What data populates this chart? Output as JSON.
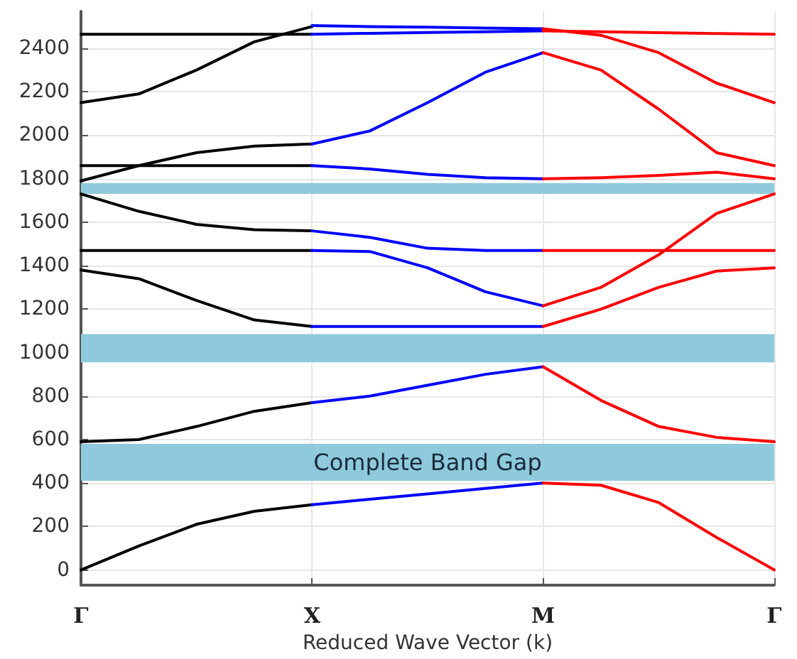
{
  "chart_data": {
    "type": "line",
    "xlabel": "Reduced Wave Vector (k)",
    "categories": [
      "Γ",
      null,
      null,
      null,
      "X",
      null,
      null,
      null,
      "M",
      null,
      null,
      null,
      "Γ"
    ],
    "ylim": [
      -70,
      2570
    ],
    "yticks": [
      0,
      200,
      400,
      600,
      800,
      1000,
      1200,
      1400,
      1600,
      1800,
      2000,
      2200,
      2400
    ],
    "grid": true,
    "marker": "none",
    "line_style": "solid",
    "bands": [
      {
        "axis": "y",
        "from": 410,
        "to": 580,
        "label": "Complete Band Gap",
        "color": "#8ecadb"
      },
      {
        "axis": "y",
        "from": 955,
        "to": 1085,
        "label": null,
        "color": "#8ecadb"
      },
      {
        "axis": "y",
        "from": 1730,
        "to": 1780,
        "label": null,
        "color": "#8ecadb"
      }
    ],
    "series": [
      {
        "color": "#000000",
        "values": [
          0,
          110,
          210,
          270,
          300,
          null,
          null,
          null,
          null,
          null,
          null,
          null,
          null
        ]
      },
      {
        "color": "#000000",
        "values": [
          590,
          600,
          660,
          730,
          770,
          null,
          null,
          null,
          null,
          null,
          null,
          null,
          null
        ]
      },
      {
        "color": "#000000",
        "values": [
          1380,
          1340,
          1240,
          1150,
          1120,
          null,
          null,
          null,
          null,
          null,
          null,
          null,
          null
        ]
      },
      {
        "color": "#000000",
        "values": [
          1470,
          1470,
          1470,
          1470,
          1470,
          null,
          null,
          null,
          null,
          null,
          null,
          null,
          null
        ]
      },
      {
        "color": "#000000",
        "values": [
          1730,
          1650,
          1590,
          1565,
          1560,
          null,
          null,
          null,
          null,
          null,
          null,
          null,
          null
        ]
      },
      {
        "color": "#000000",
        "values": [
          1860,
          1860,
          1860,
          1860,
          1860,
          null,
          null,
          null,
          null,
          null,
          null,
          null,
          null
        ]
      },
      {
        "color": "#000000",
        "values": [
          1790,
          1860,
          1920,
          1950,
          1960,
          null,
          null,
          null,
          null,
          null,
          null,
          null,
          null
        ]
      },
      {
        "color": "#000000",
        "values": [
          2150,
          2190,
          2300,
          2430,
          2500,
          null,
          null,
          null,
          null,
          null,
          null,
          null,
          null
        ]
      },
      {
        "color": "#000000",
        "values": [
          2465,
          2465,
          2465,
          2465,
          2465,
          null,
          null,
          null,
          null,
          null,
          null,
          null,
          null
        ]
      },
      {
        "color": "#0000ff",
        "values": [
          null,
          null,
          null,
          null,
          300,
          325,
          350,
          375,
          400,
          null,
          null,
          null,
          null
        ]
      },
      {
        "color": "#0000ff",
        "values": [
          null,
          null,
          null,
          null,
          770,
          800,
          850,
          900,
          935,
          null,
          null,
          null,
          null
        ]
      },
      {
        "color": "#0000ff",
        "values": [
          null,
          null,
          null,
          null,
          1120,
          1120,
          1120,
          1120,
          1120,
          null,
          null,
          null,
          null
        ]
      },
      {
        "color": "#0000ff",
        "values": [
          null,
          null,
          null,
          null,
          1560,
          1530,
          1480,
          1470,
          1470,
          null,
          null,
          null,
          null
        ]
      },
      {
        "color": "#0000ff",
        "values": [
          null,
          null,
          null,
          null,
          1470,
          1465,
          1390,
          1280,
          1215,
          null,
          null,
          null,
          null
        ]
      },
      {
        "color": "#0000ff",
        "values": [
          null,
          null,
          null,
          null,
          1860,
          1845,
          1820,
          1805,
          1800,
          null,
          null,
          null,
          null
        ]
      },
      {
        "color": "#0000ff",
        "values": [
          null,
          null,
          null,
          null,
          1960,
          2020,
          2150,
          2290,
          2380,
          null,
          null,
          null,
          null
        ]
      },
      {
        "color": "#0000ff",
        "values": [
          null,
          null,
          null,
          null,
          2505,
          2500,
          2497,
          2493,
          2490,
          null,
          null,
          null,
          null
        ]
      },
      {
        "color": "#0000ff",
        "values": [
          null,
          null,
          null,
          null,
          2465,
          2469,
          2473,
          2476,
          2480,
          null,
          null,
          null,
          null
        ]
      },
      {
        "color": "#ff0000",
        "values": [
          null,
          null,
          null,
          null,
          null,
          null,
          null,
          null,
          400,
          390,
          310,
          150,
          0
        ]
      },
      {
        "color": "#ff0000",
        "values": [
          null,
          null,
          null,
          null,
          null,
          null,
          null,
          null,
          935,
          780,
          660,
          610,
          590
        ]
      },
      {
        "color": "#ff0000",
        "values": [
          null,
          null,
          null,
          null,
          null,
          null,
          null,
          null,
          1120,
          1200,
          1300,
          1375,
          1390
        ]
      },
      {
        "color": "#ff0000",
        "values": [
          null,
          null,
          null,
          null,
          null,
          null,
          null,
          null,
          1215,
          1300,
          1450,
          1640,
          1730
        ]
      },
      {
        "color": "#ff0000",
        "values": [
          null,
          null,
          null,
          null,
          null,
          null,
          null,
          null,
          1470,
          1470,
          1470,
          1470,
          1470
        ]
      },
      {
        "color": "#ff0000",
        "values": [
          null,
          null,
          null,
          null,
          null,
          null,
          null,
          null,
          1800,
          1805,
          1815,
          1830,
          1800
        ]
      },
      {
        "color": "#ff0000",
        "values": [
          null,
          null,
          null,
          null,
          null,
          null,
          null,
          null,
          2380,
          2300,
          2120,
          1920,
          1860
        ]
      },
      {
        "color": "#ff0000",
        "values": [
          null,
          null,
          null,
          null,
          null,
          null,
          null,
          null,
          2490,
          2460,
          2380,
          2240,
          2150
        ]
      },
      {
        "color": "#ff0000",
        "values": [
          null,
          null,
          null,
          null,
          null,
          null,
          null,
          null,
          2480,
          2476,
          2472,
          2468,
          2465
        ]
      }
    ]
  }
}
